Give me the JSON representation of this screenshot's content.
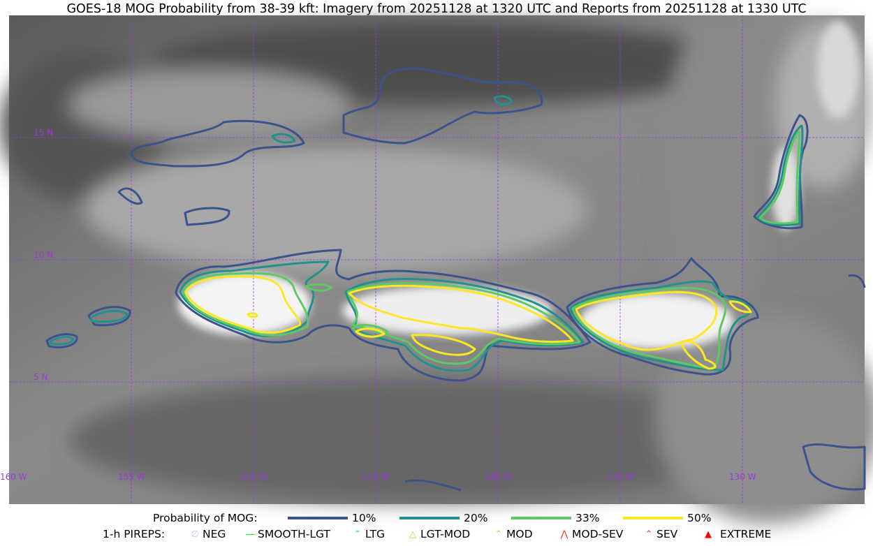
{
  "title": "GOES-18 MOG Probability from 38-39 kft: Imagery from 20251128 at 1320 UTC and Reports from 20251128 at 1330 UTC",
  "map": {
    "lat_labels": [
      "15 N",
      "10 N",
      "5 N"
    ],
    "lon_labels": [
      "160 W",
      "155 W",
      "150 W",
      "145 W",
      "140 W",
      "135 W",
      "130 W"
    ],
    "grid_color": "#9a3ad6"
  },
  "legend": {
    "prob_title": "Probability of MOG:",
    "levels": [
      {
        "label": "10%",
        "color": "#3b528b"
      },
      {
        "label": "20%",
        "color": "#21918c"
      },
      {
        "label": "33%",
        "color": "#5ec962"
      },
      {
        "label": "50%",
        "color": "#fde725"
      }
    ],
    "pirep_title": "1-h PIREPS:",
    "pireps": [
      {
        "label": "NEG",
        "icon": "neg-circle-slash-icon",
        "color": "#c8c8f0"
      },
      {
        "label": "SMOOTH-LGT",
        "icon": "line-icon",
        "color": "#00ff00"
      },
      {
        "label": "LTG",
        "icon": "caret-icon",
        "color": "#00ff00"
      },
      {
        "label": "LGT-MOD",
        "icon": "caret-bar-icon",
        "color": "#ffb02e"
      },
      {
        "label": "MOD",
        "icon": "caret-icon",
        "color": "#ffb02e"
      },
      {
        "label": "MOD-SEV",
        "icon": "double-caret-bar-icon",
        "color": "#ff3030"
      },
      {
        "label": "SEV",
        "icon": "double-caret-icon",
        "color": "#ff3030"
      },
      {
        "label": "EXTREME",
        "icon": "filled-triangle-icon",
        "color": "#ff0000"
      }
    ]
  }
}
